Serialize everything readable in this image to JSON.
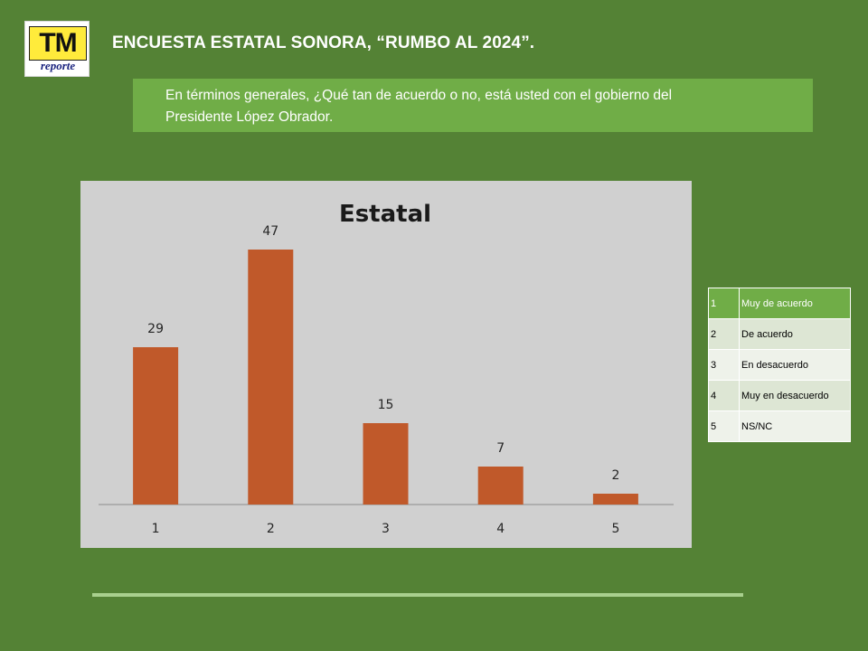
{
  "header": {
    "logo_text": "TM",
    "logo_subtext": "reporte",
    "title": "ENCUESTA ESTATAL SONORA, “RUMBO AL 2024”."
  },
  "question": {
    "line1": "En términos generales, ¿Qué tan de acuerdo o no, está usted con el gobierno del",
    "line2": "Presidente López Obrador."
  },
  "legend_table": {
    "rows": [
      {
        "num": "1",
        "label": "Muy de acuerdo"
      },
      {
        "num": "2",
        "label": "De acuerdo"
      },
      {
        "num": "3",
        "label": "En desacuerdo"
      },
      {
        "num": "4",
        "label": "Muy en desacuerdo"
      },
      {
        "num": "5",
        "label": "NS/NC"
      }
    ]
  },
  "colors": {
    "background": "#548235",
    "accent": "#70ad47",
    "bar": "#c0592a",
    "chart_bg": "#d0d0d0"
  },
  "chart_data": {
    "type": "bar",
    "title": "Estatal",
    "categories": [
      "1",
      "2",
      "3",
      "4",
      "5"
    ],
    "values": [
      29,
      47,
      15,
      7,
      2
    ],
    "data_labels": [
      "29",
      "47",
      "15",
      "7",
      "2"
    ],
    "ylim": [
      0,
      50
    ],
    "grid": false,
    "legend": "none"
  }
}
